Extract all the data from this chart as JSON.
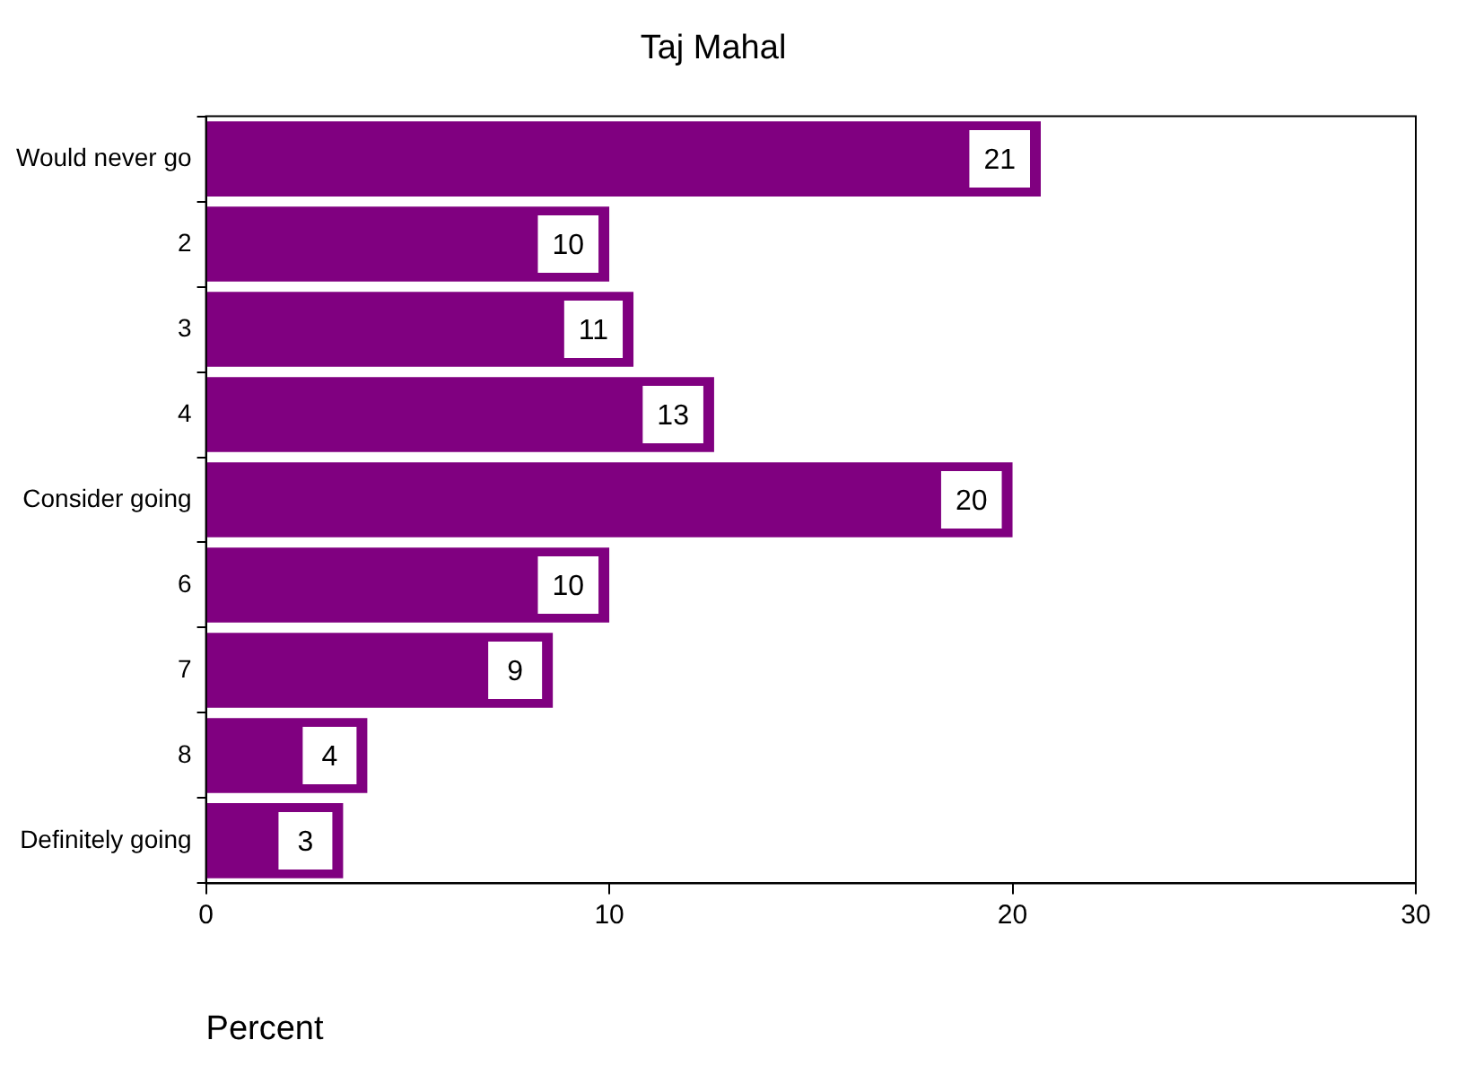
{
  "chart_data": {
    "type": "bar",
    "orientation": "horizontal",
    "title": "Taj Mahal",
    "xlabel": "Percent",
    "categories": [
      "Would never go",
      "2",
      "3",
      "4",
      "Consider going",
      "6",
      "7",
      "8",
      "Definitely going"
    ],
    "values": [
      20.7,
      10,
      10.6,
      12.6,
      20,
      10,
      8.6,
      4,
      3.4
    ],
    "value_labels": [
      "21",
      "10",
      "11",
      "13",
      "20",
      "10",
      "9",
      "4",
      "3"
    ],
    "color": "#800080",
    "xlim": [
      0,
      30
    ],
    "xticks": [
      0,
      10,
      20,
      30
    ],
    "grid": false,
    "legend": false
  }
}
